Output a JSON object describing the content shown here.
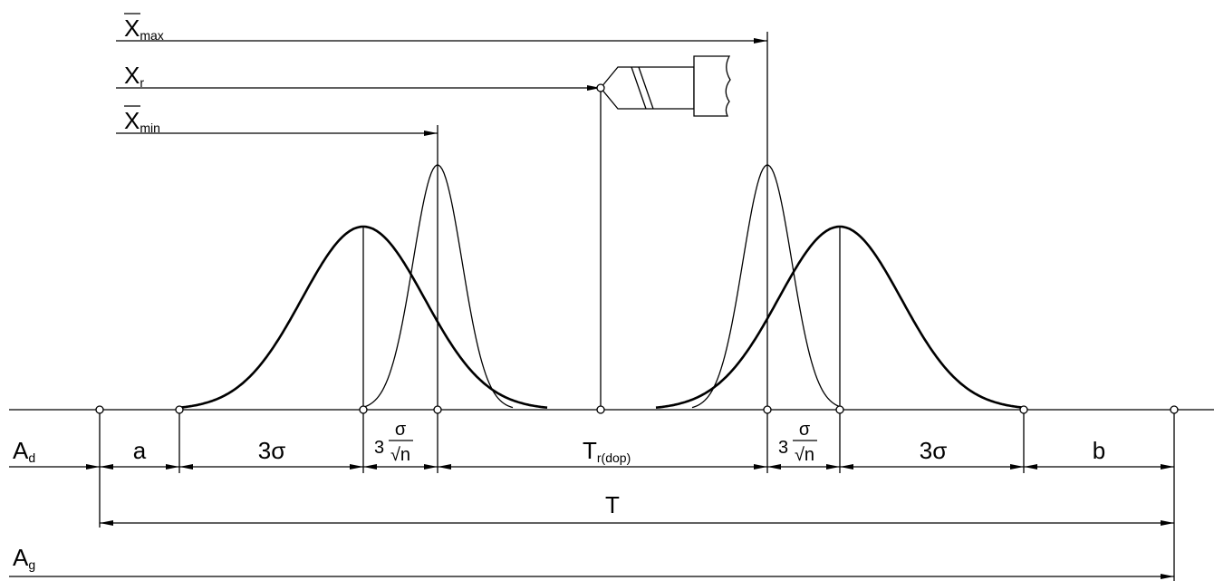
{
  "labels": {
    "x_max": {
      "main": "X",
      "sub": "max"
    },
    "x_r": {
      "main": "X",
      "sub": "r"
    },
    "x_min": {
      "main": "X",
      "sub": "min"
    },
    "a_d": {
      "main": "A",
      "sub": "d"
    },
    "a": "a",
    "three_sigma_left": "3σ",
    "fraction_left": {
      "coefficient": "3",
      "numerator": "σ",
      "denominator": "√n"
    },
    "t_r_dop": {
      "main": "T",
      "sub": "r(dop)"
    },
    "fraction_right": {
      "coefficient": "3",
      "numerator": "σ",
      "denominator": "√n"
    },
    "three_sigma_right": "3σ",
    "b": "b",
    "t": "T",
    "a_g": {
      "main": "A",
      "sub": "g"
    }
  }
}
